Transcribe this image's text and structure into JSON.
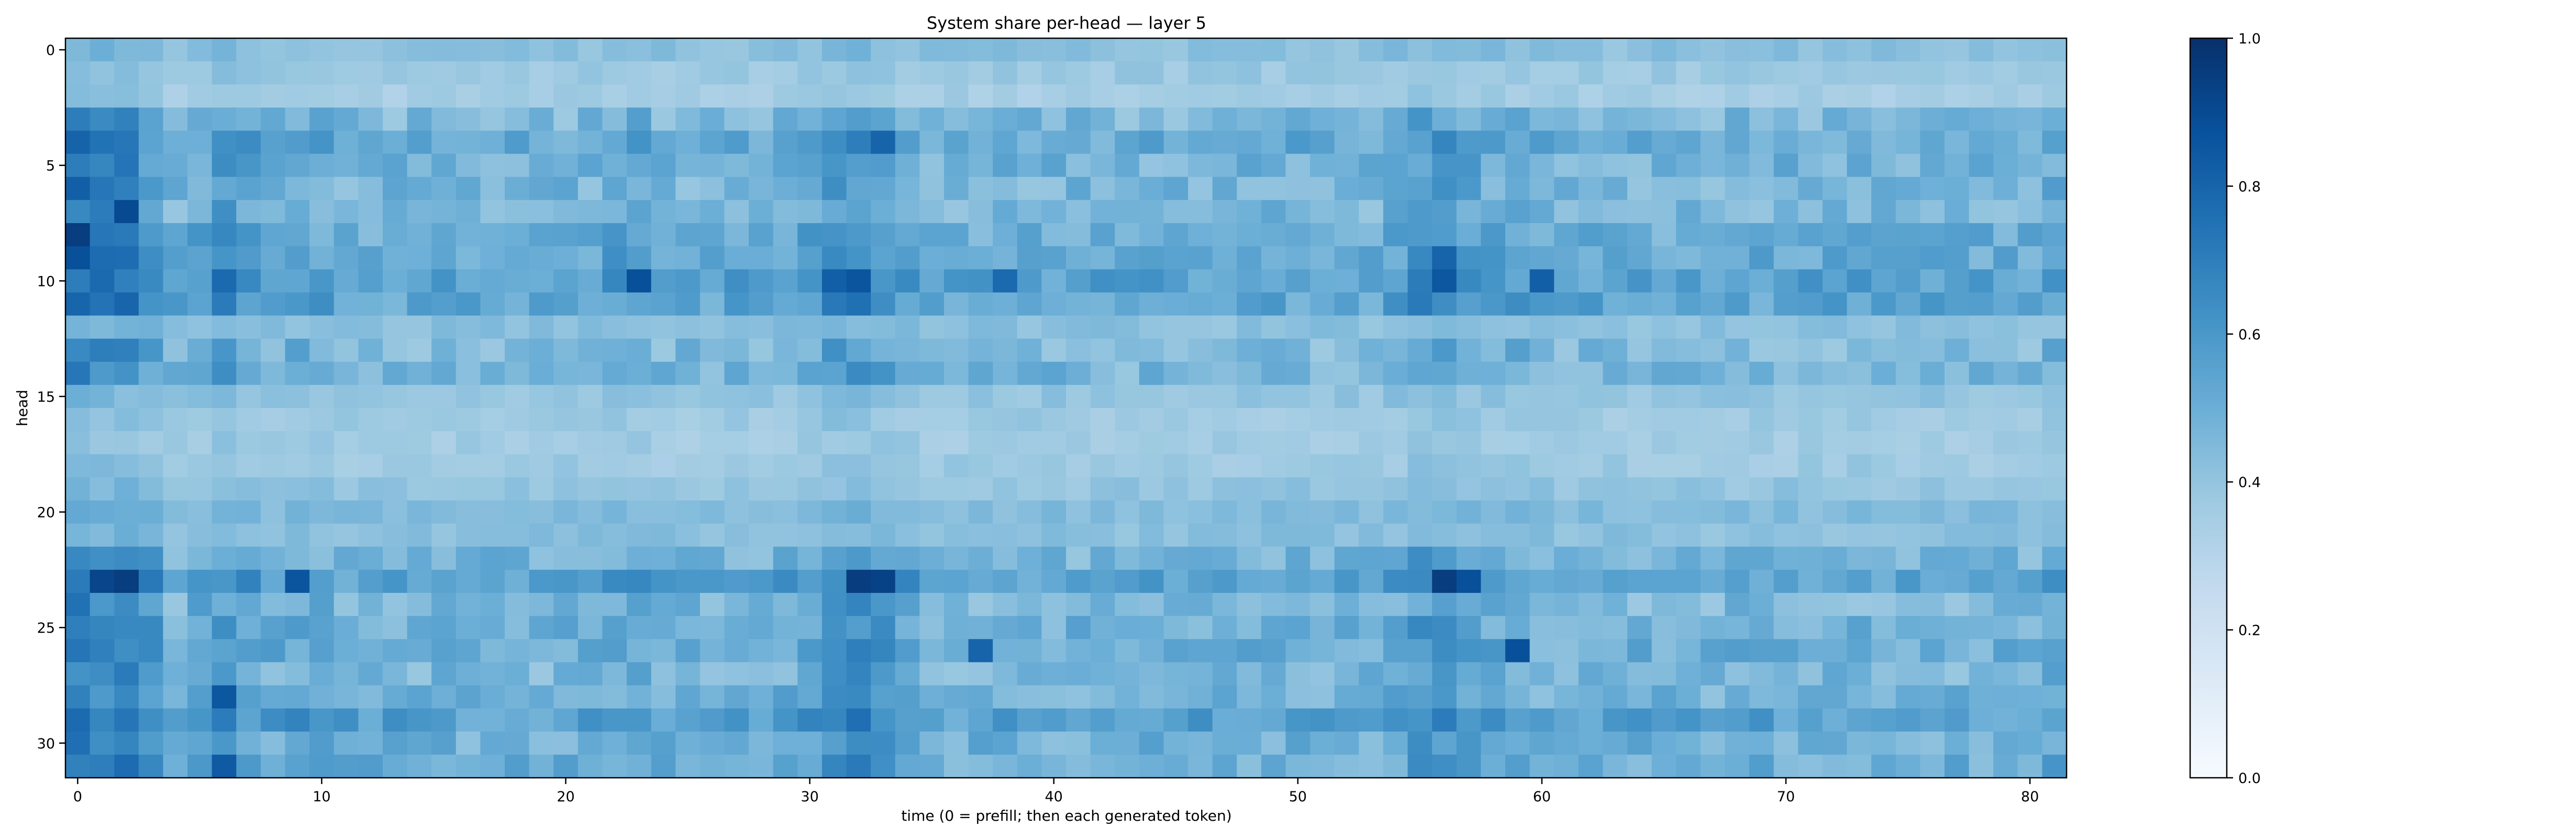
{
  "chart_data": {
    "type": "heatmap",
    "title": "System share per-head — layer 5",
    "xlabel": "time (0 = prefill; then each generated token)",
    "ylabel": "head",
    "x_range": [
      0,
      81
    ],
    "y_range": [
      0,
      31
    ],
    "x_ticks": [
      0,
      10,
      20,
      30,
      40,
      50,
      60,
      70,
      80
    ],
    "y_ticks": [
      0,
      5,
      10,
      15,
      20,
      25,
      30
    ],
    "colormap": "Blues",
    "colorbar": {
      "min": 0.0,
      "max": 1.0,
      "ticks": [
        "0.0",
        "0.2",
        "0.4",
        "0.6",
        "0.8",
        "1.0"
      ]
    },
    "row_means": [
      0.42,
      0.38,
      0.35,
      0.45,
      0.52,
      0.48,
      0.47,
      0.46,
      0.5,
      0.52,
      0.56,
      0.54,
      0.42,
      0.45,
      0.47,
      0.4,
      0.37,
      0.36,
      0.37,
      0.4,
      0.44,
      0.42,
      0.47,
      0.56,
      0.46,
      0.49,
      0.5,
      0.46,
      0.48,
      0.56,
      0.49,
      0.5
    ],
    "column_boost": [
      0.22,
      0.18,
      0.2,
      0.1,
      0.0,
      0.05,
      0.1,
      0.05,
      0.02,
      0.05,
      0.03,
      0.0,
      0.0,
      0.0,
      0.0,
      0.0,
      0.0,
      0.0,
      0.0,
      0.0,
      0.0,
      0.0,
      0.04,
      0.05,
      0.0,
      0.0,
      0.0,
      0.0,
      0.0,
      0.02,
      0.06,
      0.12,
      0.14,
      0.1,
      0.04,
      0.0,
      0.0,
      0.0,
      0.0,
      0.0,
      0.0,
      0.0,
      0.0,
      0.0,
      0.0,
      0.0,
      0.0,
      0.0,
      0.0,
      0.0,
      0.0,
      0.0,
      0.0,
      0.0,
      0.03,
      0.1,
      0.12,
      0.06,
      0.03,
      0.04,
      0.0,
      0.0,
      0.0,
      0.0,
      0.0,
      0.0,
      0.0,
      0.0,
      0.0,
      0.0,
      0.0,
      0.0,
      0.0,
      0.0,
      0.0,
      0.0,
      0.0,
      0.0,
      0.0,
      0.0,
      0.0,
      0.04
    ],
    "hotspots": [
      {
        "head": 8,
        "t": 0,
        "value": 0.95
      },
      {
        "head": 9,
        "t": 0,
        "value": 0.88
      },
      {
        "head": 6,
        "t": 0,
        "value": 0.82
      },
      {
        "head": 7,
        "t": 2,
        "value": 0.9
      },
      {
        "head": 23,
        "t": 1,
        "value": 0.92
      },
      {
        "head": 23,
        "t": 2,
        "value": 0.95
      },
      {
        "head": 10,
        "t": 23,
        "value": 0.88
      },
      {
        "head": 10,
        "t": 31,
        "value": 0.82
      },
      {
        "head": 10,
        "t": 32,
        "value": 0.86
      },
      {
        "head": 23,
        "t": 32,
        "value": 0.95
      },
      {
        "head": 23,
        "t": 33,
        "value": 0.93
      },
      {
        "head": 4,
        "t": 33,
        "value": 0.8
      },
      {
        "head": 23,
        "t": 56,
        "value": 0.95
      },
      {
        "head": 23,
        "t": 57,
        "value": 0.88
      },
      {
        "head": 10,
        "t": 56,
        "value": 0.85
      },
      {
        "head": 9,
        "t": 56,
        "value": 0.8
      },
      {
        "head": 10,
        "t": 60,
        "value": 0.82
      },
      {
        "head": 26,
        "t": 59,
        "value": 0.88
      },
      {
        "head": 23,
        "t": 9,
        "value": 0.86
      },
      {
        "head": 28,
        "t": 6,
        "value": 0.85
      },
      {
        "head": 31,
        "t": 6,
        "value": 0.84
      },
      {
        "head": 10,
        "t": 6,
        "value": 0.78
      },
      {
        "head": 26,
        "t": 37,
        "value": 0.8
      },
      {
        "head": 10,
        "t": 38,
        "value": 0.78
      }
    ]
  }
}
